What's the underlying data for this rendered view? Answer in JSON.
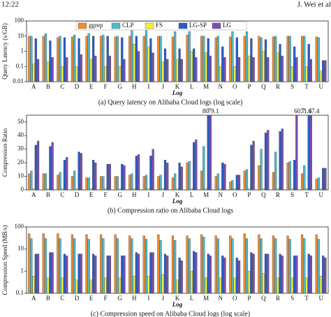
{
  "header": {
    "time": "12:22",
    "author": "J. Wei et al"
  },
  "chart_data": [
    {
      "type": "bar",
      "log_scale": true,
      "legend": "top",
      "caption": "(a) Query latency on Alibaba Cloud logs (log scale)",
      "y_label": "Query Latency (s/GB)",
      "x_label": "Log",
      "categories": [
        "A",
        "B",
        "C",
        "D",
        "E",
        "F",
        "G",
        "H",
        "I",
        "J",
        "K",
        "L",
        "M",
        "N",
        "O",
        "P",
        "Q",
        "R",
        "S",
        "T",
        "U"
      ],
      "ylim": [
        0.01,
        100
      ],
      "yticks": [
        0.01,
        0.1,
        1,
        10,
        100
      ],
      "series": [
        {
          "name": "ggrep",
          "color": "#f28a30",
          "values": [
            10,
            10,
            8,
            9,
            10,
            10,
            9,
            10,
            10,
            10,
            9,
            12,
            10,
            8,
            9,
            10,
            10,
            9,
            10,
            10,
            9
          ]
        },
        {
          "name": "CLP",
          "color": "#4fb8c8",
          "values": [
            10,
            15,
            10,
            12,
            15,
            12,
            10,
            30,
            25,
            10,
            20,
            20,
            10,
            10,
            20,
            20,
            8,
            10,
            10,
            10,
            8
          ]
        },
        {
          "name": "FS",
          "color": "#f2ee3a",
          "values": [
            0.15,
            0.2,
            0.1,
            0.1,
            0.3,
            0.1,
            0.1,
            3,
            2,
            0.2,
            0.3,
            1,
            0.8,
            0.1,
            0.1,
            0.5,
            1,
            0.8,
            0.1,
            0.1,
            0.05
          ]
        },
        {
          "name": "LG-SP",
          "color": "#2a5cc8",
          "values": [
            7,
            5,
            8,
            7,
            10,
            10,
            8,
            10,
            7,
            1.5,
            1.5,
            1.5,
            7,
            2,
            8,
            7,
            6,
            3,
            2,
            3,
            0.25
          ]
        },
        {
          "name": "LG",
          "color": "#7a4fb0",
          "values": [
            0.3,
            0.4,
            0.4,
            0.6,
            0.5,
            0.5,
            0.3,
            1,
            0.8,
            0.3,
            0.3,
            0.4,
            0.5,
            0.4,
            0.4,
            0.4,
            0.4,
            0.5,
            0.4,
            0.3,
            0.25
          ]
        }
      ]
    },
    {
      "type": "bar",
      "log_scale": false,
      "caption": "(b) Compression ratio on Alibaba Cloud logs",
      "y_label": "Compression Ratio",
      "x_label": "Log",
      "categories": [
        "A",
        "B",
        "C",
        "D",
        "E",
        "F",
        "G",
        "H",
        "I",
        "J",
        "K",
        "L",
        "M",
        "N",
        "O",
        "P",
        "Q",
        "R",
        "S",
        "T",
        "U"
      ],
      "ylim": [
        0,
        55
      ],
      "yticks": [
        0,
        10,
        20,
        30,
        40,
        50
      ],
      "series": [
        {
          "color": "#f28a30",
          "values": [
            12,
            12,
            11,
            10,
            9,
            10,
            10,
            11,
            10,
            10,
            9,
            20,
            14,
            10,
            6,
            14,
            18,
            13,
            20,
            12,
            8
          ]
        },
        {
          "color": "#4fb8c8",
          "values": [
            14,
            12,
            13,
            14,
            9,
            10,
            10,
            12,
            11,
            11,
            12,
            21,
            32,
            12,
            7,
            15,
            30,
            28,
            21,
            18,
            9
          ]
        },
        {
          "color": "#f2ee3a",
          "values": [
            1,
            1,
            1,
            1,
            1,
            1,
            1,
            1,
            1,
            1,
            1,
            1,
            1,
            1,
            1,
            1,
            1,
            1,
            1,
            1,
            1
          ]
        },
        {
          "color": "#2a5cc8",
          "values": [
            33,
            32,
            22,
            28,
            22,
            19,
            19,
            25,
            25,
            22,
            20,
            35,
            80,
            20,
            11,
            33,
            42,
            43,
            22,
            71.4,
            16
          ],
          "value_labels": [
            null,
            null,
            null,
            null,
            null,
            null,
            null,
            null,
            null,
            null,
            null,
            null,
            "80",
            null,
            null,
            null,
            null,
            null,
            null,
            "71.4",
            null
          ]
        },
        {
          "color": "#7a4fb0",
          "values": [
            36,
            35,
            24,
            27,
            20,
            19,
            18,
            26,
            30,
            20,
            17,
            37,
            79.1,
            19,
            11,
            36,
            44,
            45,
            60.7,
            67.4,
            16
          ],
          "value_labels": [
            null,
            null,
            null,
            null,
            null,
            null,
            null,
            null,
            null,
            null,
            null,
            null,
            "79.1",
            null,
            null,
            null,
            null,
            null,
            "60.7",
            "67.4",
            null
          ]
        }
      ]
    },
    {
      "type": "bar",
      "log_scale": true,
      "caption": "(c) Compression speed on Alibaba Cloud logs (log scale)",
      "y_label": "Compression Speed (MB/s)",
      "x_label": "Log",
      "categories": [
        "A",
        "B",
        "C",
        "D",
        "E",
        "F",
        "G",
        "H",
        "I",
        "J",
        "K",
        "L",
        "M",
        "N",
        "O",
        "P",
        "Q",
        "R",
        "S",
        "T",
        "U"
      ],
      "ylim": [
        0.1,
        100
      ],
      "yticks": [
        0.1,
        1,
        10,
        100
      ],
      "series": [
        {
          "color": "#f28a30",
          "values": [
            50,
            50,
            50,
            45,
            45,
            45,
            45,
            40,
            40,
            45,
            40,
            40,
            45,
            40,
            40,
            50,
            45,
            40,
            40,
            45,
            45
          ]
        },
        {
          "color": "#4fb8c8",
          "values": [
            30,
            30,
            30,
            30,
            28,
            30,
            30,
            30,
            28,
            25,
            25,
            30,
            35,
            30,
            30,
            30,
            30,
            30,
            28,
            30,
            28
          ]
        },
        {
          "color": "#f2ee3a",
          "values": [
            0.6,
            0.5,
            0.5,
            0.4,
            0.4,
            0.5,
            0.5,
            0.6,
            0.6,
            0.7,
            0.4,
            1,
            0.5,
            0.5,
            0.5,
            1,
            0.8,
            0.5,
            0.5,
            0.5,
            0.6
          ]
        },
        {
          "color": "#2a5cc8",
          "values": [
            6,
            7,
            6,
            6,
            6,
            5,
            5,
            7,
            7,
            6,
            4,
            8,
            6,
            5,
            4,
            7,
            6,
            6,
            5,
            6,
            5
          ]
        },
        {
          "color": "#7a4fb0",
          "values": [
            6,
            7,
            5,
            6,
            5,
            5,
            5,
            6,
            7,
            5,
            3,
            7,
            5,
            4,
            3,
            6,
            6,
            5,
            5,
            5,
            4
          ]
        }
      ]
    }
  ]
}
